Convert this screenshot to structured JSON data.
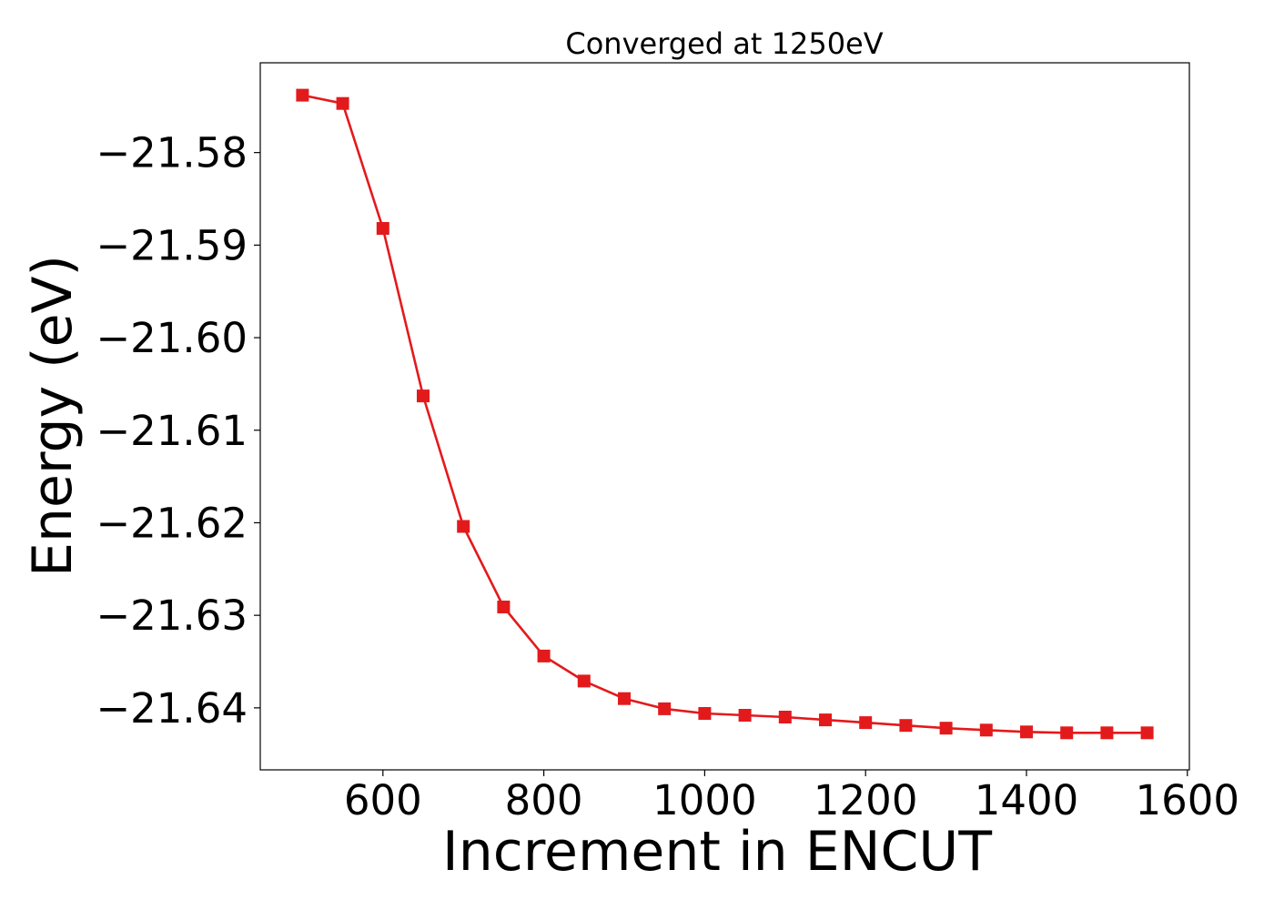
{
  "chart_data": {
    "type": "line",
    "title": "Converged at 1250eV",
    "xlabel": "Increment in ENCUT",
    "ylabel": "Energy (eV)",
    "xlim": [
      447.5,
      1602.5
    ],
    "ylim": [
      -21.6467,
      -21.5703
    ],
    "xticks": [
      600,
      800,
      1000,
      1200,
      1400,
      1600
    ],
    "xtick_labels": [
      "600",
      "800",
      "1000",
      "1200",
      "1400",
      "1600"
    ],
    "yticks": [
      -21.58,
      -21.59,
      -21.6,
      -21.61,
      -21.62,
      -21.63,
      -21.64
    ],
    "ytick_labels": [
      "−21.58",
      "−21.59",
      "−21.60",
      "−21.61",
      "−21.62",
      "−21.63",
      "−21.64"
    ],
    "grid": false,
    "legend": "none",
    "series": [
      {
        "color": "#e31a1c",
        "marker": "square",
        "x": [
          500,
          550,
          600,
          650,
          700,
          750,
          800,
          850,
          900,
          950,
          1000,
          1050,
          1100,
          1150,
          1200,
          1250,
          1300,
          1350,
          1400,
          1450,
          1500,
          1550
        ],
        "y": [
          -21.5738,
          -21.5747,
          -21.5882,
          -21.6063,
          -21.6204,
          -21.6291,
          -21.6344,
          -21.6371,
          -21.639,
          -21.6401,
          -21.6406,
          -21.6408,
          -21.641,
          -21.6413,
          -21.6416,
          -21.6419,
          -21.6422,
          -21.6424,
          -21.6426,
          -21.6427,
          -21.6427,
          -21.6427
        ]
      }
    ]
  }
}
